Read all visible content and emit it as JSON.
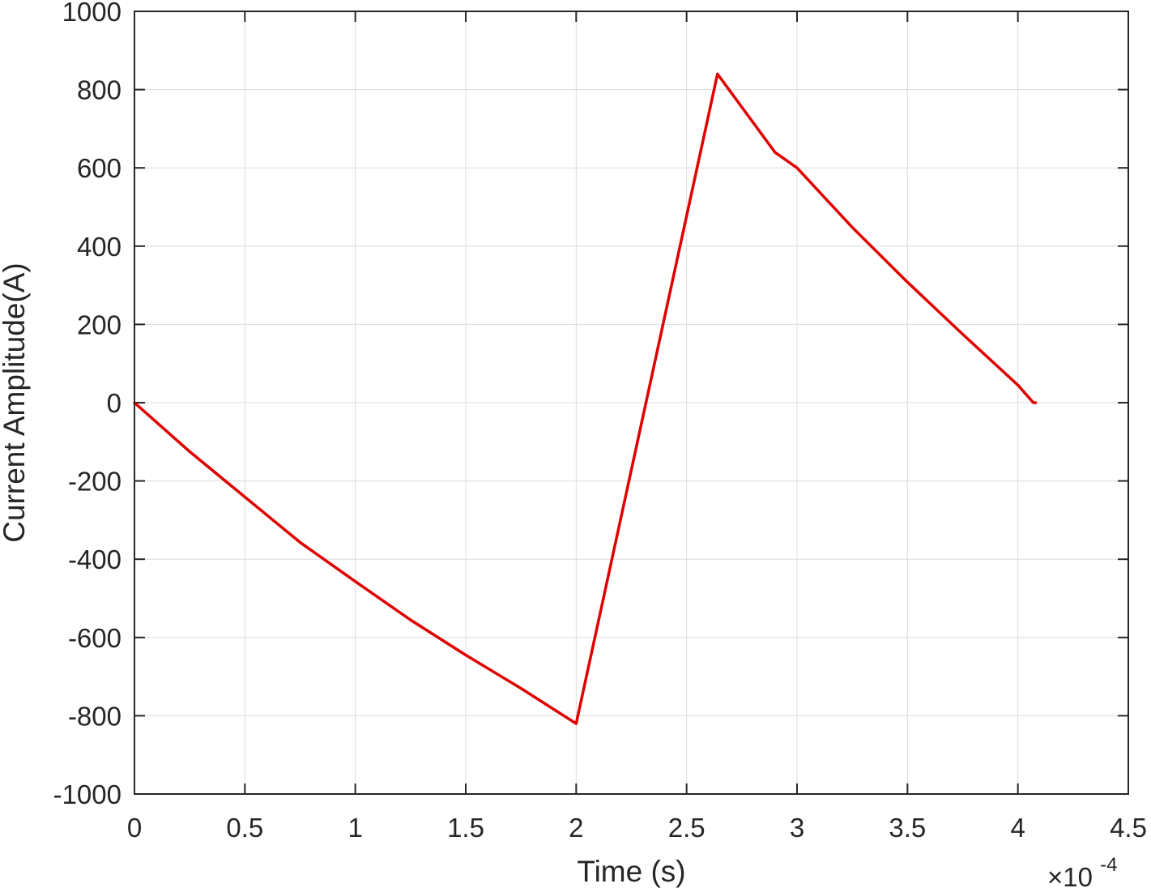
{
  "chart_data": {
    "type": "line",
    "xlabel": "Time (s)",
    "ylabel": "Current Amplitude(A)",
    "x_exponent_base": "×10",
    "x_exponent_power": "-4",
    "xlim": [
      0,
      4.5
    ],
    "ylim": [
      -1000,
      1000
    ],
    "xticks": [
      0,
      0.5,
      1,
      1.5,
      2,
      2.5,
      3,
      3.5,
      4,
      4.5
    ],
    "xtick_labels": [
      "0",
      "0.5",
      "1",
      "1.5",
      "2",
      "2.5",
      "3",
      "3.5",
      "4",
      "4.5"
    ],
    "yticks": [
      -1000,
      -800,
      -600,
      -400,
      -200,
      0,
      200,
      400,
      600,
      800,
      1000
    ],
    "ytick_labels": [
      "-1000",
      "-800",
      "-600",
      "-400",
      "-200",
      "0",
      "200",
      "400",
      "600",
      "800",
      "1000"
    ],
    "grid": true,
    "series": [
      {
        "color": "#e00000",
        "x": [
          0,
          0.25,
          0.5,
          0.75,
          1.0,
          1.25,
          1.5,
          1.75,
          2.0,
          2.64,
          2.9,
          3.0,
          3.25,
          3.5,
          3.75,
          4.0,
          4.07,
          4.08
        ],
        "y": [
          0,
          -125,
          -241,
          -357,
          -457,
          -555,
          -645,
          -730,
          -820,
          840,
          640,
          600,
          448,
          308,
          175,
          45,
          0,
          0
        ]
      }
    ]
  }
}
